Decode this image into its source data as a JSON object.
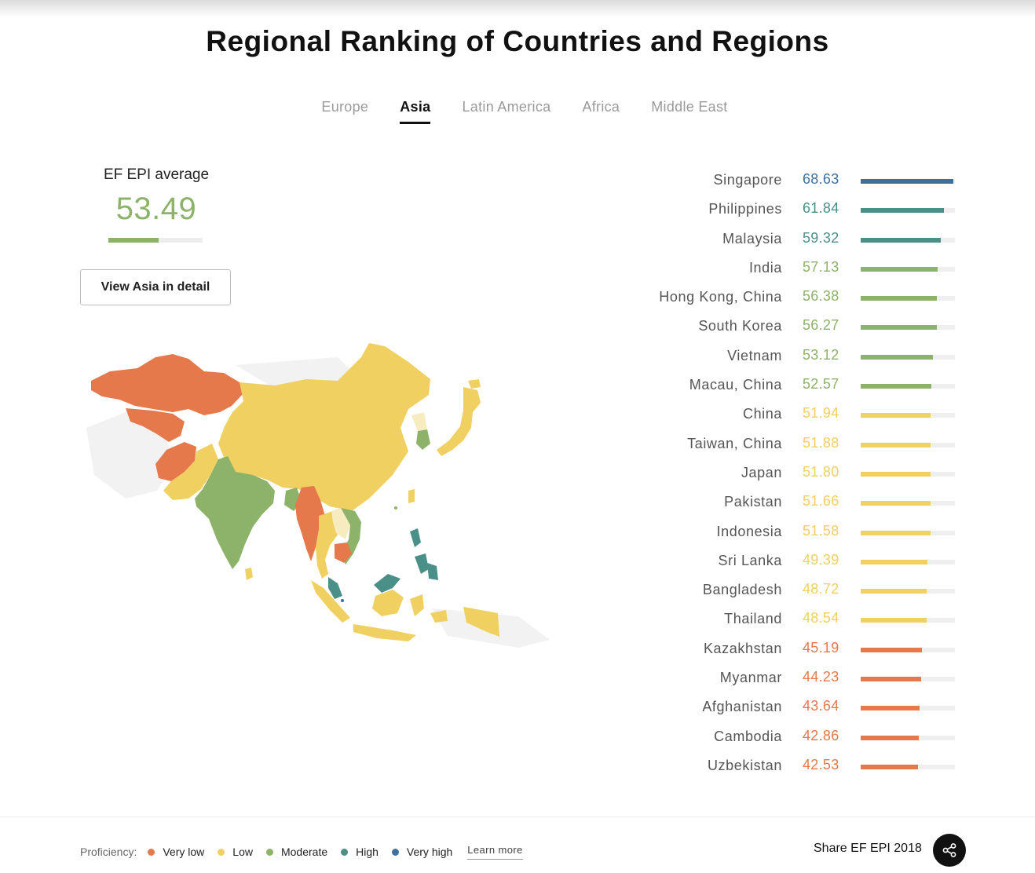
{
  "title": "Regional Ranking of Countries and Regions",
  "tabs": [
    {
      "label": "Europe",
      "active": false
    },
    {
      "label": "Asia",
      "active": true
    },
    {
      "label": "Latin America",
      "active": false
    },
    {
      "label": "Africa",
      "active": false
    },
    {
      "label": "Middle East",
      "active": false
    }
  ],
  "average": {
    "label": "EF EPI average",
    "value": "53.49",
    "fill_fraction": 0.53,
    "color": "#8db26a"
  },
  "detail_button": "View Asia in detail",
  "colors": {
    "very_low": "#e5794b",
    "low": "#f0d060",
    "moderate": "#8db26a",
    "high": "#4a9088",
    "very_high": "#3f6f9b"
  },
  "ranking": [
    {
      "name": "Singapore",
      "score": "68.63",
      "level": "very_high",
      "fill_fraction": 0.9833
    },
    {
      "name": "Philippines",
      "score": "61.84",
      "level": "high",
      "fill_fraction": 0.8833
    },
    {
      "name": "Malaysia",
      "score": "59.32",
      "level": "high",
      "fill_fraction": 0.85
    },
    {
      "name": "India",
      "score": "57.13",
      "level": "moderate",
      "fill_fraction": 0.8167
    },
    {
      "name": "Hong Kong, China",
      "score": "56.38",
      "level": "moderate",
      "fill_fraction": 0.8083
    },
    {
      "name": "South Korea",
      "score": "56.27",
      "level": "moderate",
      "fill_fraction": 0.8083
    },
    {
      "name": "Vietnam",
      "score": "53.12",
      "level": "moderate",
      "fill_fraction": 0.7667
    },
    {
      "name": "Macau, China",
      "score": "52.57",
      "level": "moderate",
      "fill_fraction": 0.75
    },
    {
      "name": "China",
      "score": "51.94",
      "level": "low",
      "fill_fraction": 0.7417
    },
    {
      "name": "Taiwan, China",
      "score": "51.88",
      "level": "low",
      "fill_fraction": 0.7417
    },
    {
      "name": "Japan",
      "score": "51.80",
      "level": "low",
      "fill_fraction": 0.7417
    },
    {
      "name": "Pakistan",
      "score": "51.66",
      "level": "low",
      "fill_fraction": 0.7417
    },
    {
      "name": "Indonesia",
      "score": "51.58",
      "level": "low",
      "fill_fraction": 0.7417
    },
    {
      "name": "Sri Lanka",
      "score": "49.39",
      "level": "low",
      "fill_fraction": 0.7083
    },
    {
      "name": "Bangladesh",
      "score": "48.72",
      "level": "low",
      "fill_fraction": 0.7
    },
    {
      "name": "Thailand",
      "score": "48.54",
      "level": "low",
      "fill_fraction": 0.7
    },
    {
      "name": "Kazakhstan",
      "score": "45.19",
      "level": "very_low",
      "fill_fraction": 0.65
    },
    {
      "name": "Myanmar",
      "score": "44.23",
      "level": "very_low",
      "fill_fraction": 0.6417
    },
    {
      "name": "Afghanistan",
      "score": "43.64",
      "level": "very_low",
      "fill_fraction": 0.625
    },
    {
      "name": "Cambodia",
      "score": "42.86",
      "level": "very_low",
      "fill_fraction": 0.6167
    },
    {
      "name": "Uzbekistan",
      "score": "42.53",
      "level": "very_low",
      "fill_fraction": 0.6083
    }
  ],
  "legend": {
    "label": "Proficiency:",
    "items": [
      {
        "label": "Very low",
        "level": "very_low"
      },
      {
        "label": "Low",
        "level": "low"
      },
      {
        "label": "Moderate",
        "level": "moderate"
      },
      {
        "label": "High",
        "level": "high"
      },
      {
        "label": "Very high",
        "level": "very_high"
      }
    ],
    "learn_more": "Learn more"
  },
  "share": {
    "label": "Share EF EPI 2018",
    "icon": "share-icon"
  },
  "map": {
    "icon": "asia-map"
  }
}
